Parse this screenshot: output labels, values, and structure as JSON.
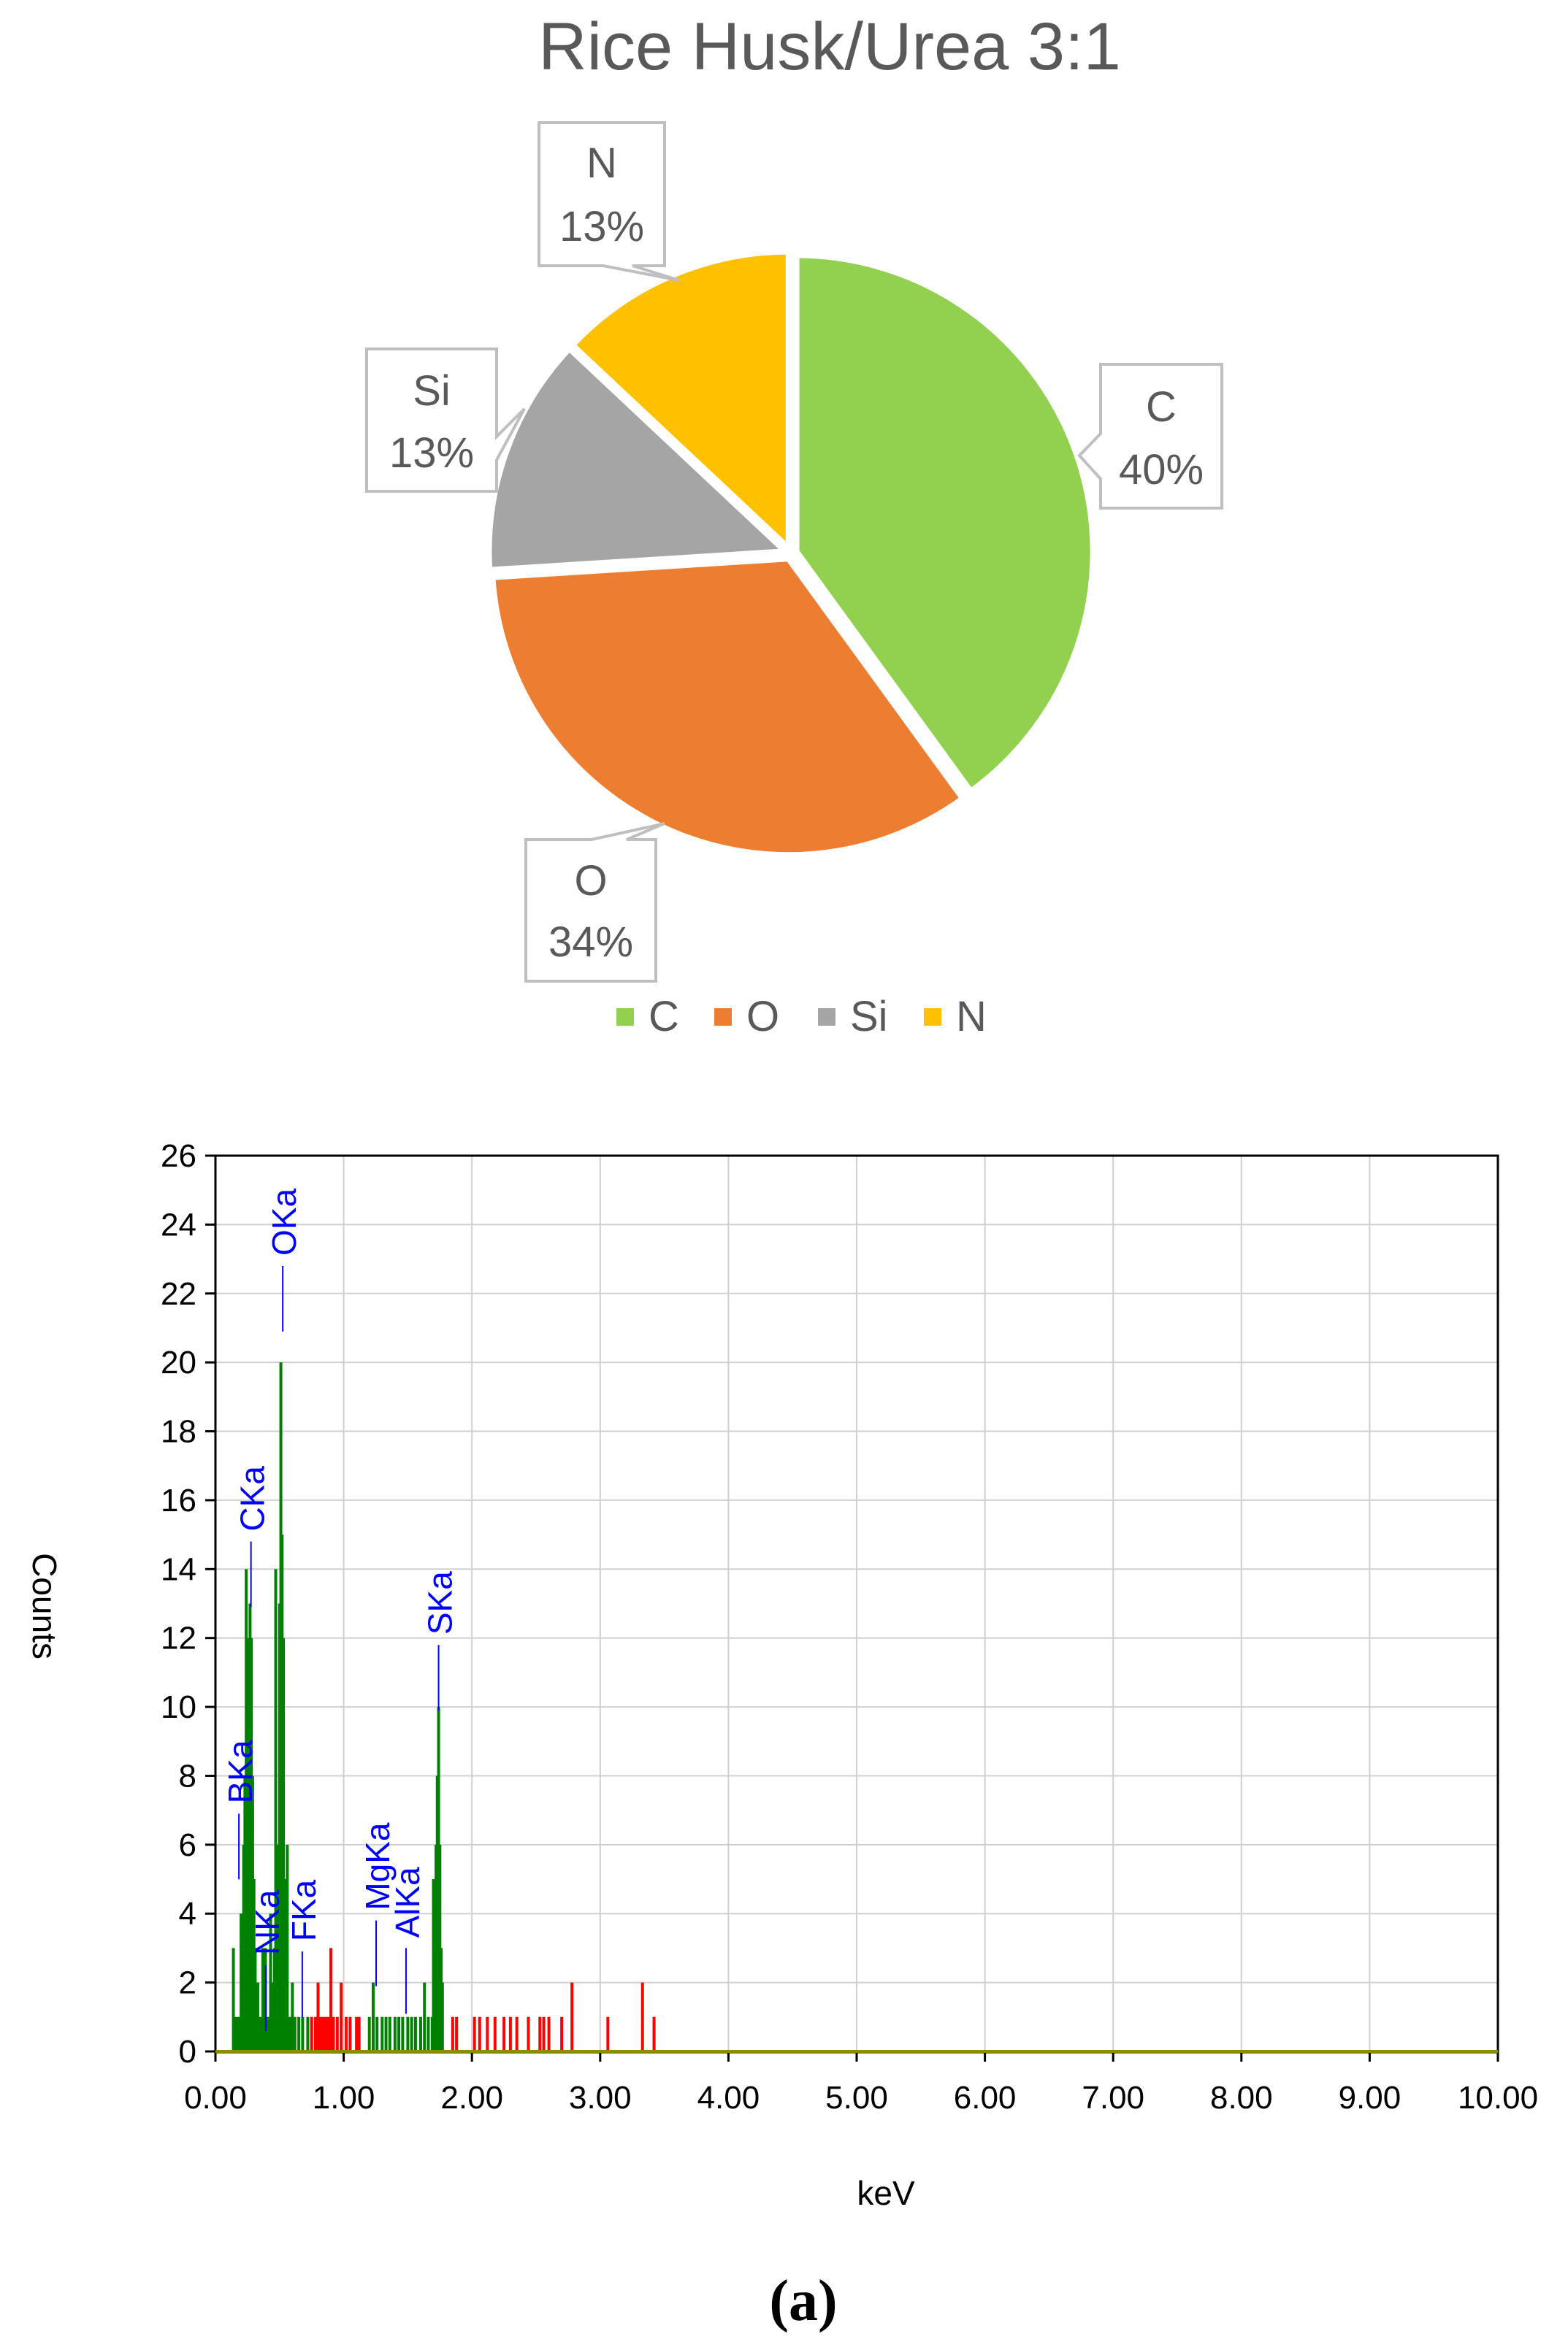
{
  "chart_data": [
    {
      "type": "pie",
      "title": "Rice Husk/Urea 3:1",
      "slices": [
        {
          "label": "C",
          "value": 40,
          "text": "40%",
          "color": "#92D050"
        },
        {
          "label": "O",
          "value": 34,
          "text": "34%",
          "color": "#ED7D31"
        },
        {
          "label": "Si",
          "value": 13,
          "text": "13%",
          "color": "#A5A5A5"
        },
        {
          "label": "N",
          "value": 13,
          "text": "13%",
          "color": "#FFC000"
        }
      ],
      "legend": {
        "placement": "bottom",
        "items": [
          "C",
          "O",
          "Si",
          "N"
        ]
      }
    },
    {
      "type": "bar",
      "title": "",
      "xlabel": "keV",
      "ylabel": "Counts",
      "xlim": [
        0,
        10
      ],
      "ylim": [
        0,
        26
      ],
      "grid": true,
      "x_ticks": [
        "0.00",
        "1.00",
        "2.00",
        "3.00",
        "4.00",
        "5.00",
        "6.00",
        "7.00",
        "8.00",
        "9.00",
        "10.00"
      ],
      "y_ticks": [
        "0",
        "2",
        "4",
        "6",
        "8",
        "10",
        "12",
        "14",
        "16",
        "18",
        "20",
        "22",
        "24",
        "26"
      ],
      "series": [
        {
          "color": "#008000",
          "values": [
            [
              0.14,
              3
            ],
            [
              0.16,
              1
            ],
            [
              0.18,
              1
            ],
            [
              0.2,
              4
            ],
            [
              0.22,
              6
            ],
            [
              0.23,
              8
            ],
            [
              0.24,
              14
            ],
            [
              0.25,
              10
            ],
            [
              0.26,
              12
            ],
            [
              0.27,
              13
            ],
            [
              0.28,
              12
            ],
            [
              0.29,
              8
            ],
            [
              0.3,
              5
            ],
            [
              0.31,
              3
            ],
            [
              0.33,
              2
            ],
            [
              0.35,
              1
            ],
            [
              0.37,
              3
            ],
            [
              0.39,
              3
            ],
            [
              0.41,
              1
            ],
            [
              0.43,
              4
            ],
            [
              0.44,
              2
            ],
            [
              0.46,
              3
            ],
            [
              0.47,
              14
            ],
            [
              0.48,
              6
            ],
            [
              0.49,
              4
            ],
            [
              0.5,
              13
            ],
            [
              0.51,
              20
            ],
            [
              0.52,
              15
            ],
            [
              0.53,
              12
            ],
            [
              0.54,
              5
            ],
            [
              0.55,
              3
            ],
            [
              0.56,
              6
            ],
            [
              0.58,
              1
            ],
            [
              0.6,
              2
            ],
            [
              0.62,
              1
            ],
            [
              0.65,
              1
            ],
            [
              0.68,
              1
            ],
            [
              0.72,
              1
            ],
            [
              1.2,
              1
            ],
            [
              1.23,
              2
            ],
            [
              1.26,
              1
            ],
            [
              1.3,
              1
            ],
            [
              1.33,
              1
            ],
            [
              1.36,
              1
            ],
            [
              1.4,
              1
            ],
            [
              1.43,
              1
            ],
            [
              1.46,
              1
            ],
            [
              1.5,
              1
            ],
            [
              1.53,
              1
            ],
            [
              1.56,
              1
            ],
            [
              1.6,
              1
            ],
            [
              1.63,
              2
            ],
            [
              1.66,
              1
            ],
            [
              1.69,
              1
            ],
            [
              1.7,
              5
            ],
            [
              1.71,
              4
            ],
            [
              1.72,
              6
            ],
            [
              1.73,
              8
            ],
            [
              1.74,
              10
            ],
            [
              1.75,
              6
            ],
            [
              1.76,
              3
            ],
            [
              1.77,
              2
            ]
          ]
        },
        {
          "color": "#FF0000",
          "values": [
            [
              0.75,
              1
            ],
            [
              0.78,
              1
            ],
            [
              0.8,
              2
            ],
            [
              0.82,
              1
            ],
            [
              0.84,
              1
            ],
            [
              0.86,
              1
            ],
            [
              0.88,
              1
            ],
            [
              0.9,
              3
            ],
            [
              0.92,
              1
            ],
            [
              0.95,
              1
            ],
            [
              0.98,
              2
            ],
            [
              1.02,
              1
            ],
            [
              1.05,
              1
            ],
            [
              1.1,
              1
            ],
            [
              1.12,
              1
            ],
            [
              1.85,
              1
            ],
            [
              1.88,
              1
            ],
            [
              2.02,
              1
            ],
            [
              2.06,
              1
            ],
            [
              2.12,
              1
            ],
            [
              2.18,
              1
            ],
            [
              2.25,
              1
            ],
            [
              2.3,
              1
            ],
            [
              2.35,
              1
            ],
            [
              2.44,
              1
            ],
            [
              2.53,
              1
            ],
            [
              2.56,
              1
            ],
            [
              2.6,
              1
            ],
            [
              2.7,
              1
            ],
            [
              2.78,
              2
            ],
            [
              3.06,
              1
            ],
            [
              3.33,
              2
            ],
            [
              3.42,
              1
            ]
          ]
        }
      ],
      "annotations": [
        {
          "text": "OKa",
          "x": 0.525,
          "top": 22.8,
          "color": "#0000FF"
        },
        {
          "text": "CKa",
          "x": 0.277,
          "top": 14.8,
          "color": "#0000FF"
        },
        {
          "text": "SKa",
          "x": 1.74,
          "top": 11.8,
          "color": "#0000FF"
        },
        {
          "text": "BKa",
          "x": 0.183,
          "top": 6.9,
          "color": "#0000FF"
        },
        {
          "text": "AlKa",
          "x": 1.486,
          "top": 3.0,
          "color": "#0000FF"
        },
        {
          "text": "FKa",
          "x": 0.677,
          "top": 2.9,
          "color": "#0000FF"
        },
        {
          "text": "MgKa",
          "x": 1.253,
          "top": 3.8,
          "color": "#0000FF"
        },
        {
          "text": "NKa",
          "x": 0.392,
          "top": 2.5,
          "color": "#0000FF"
        }
      ]
    }
  ],
  "panel_label": "(a)"
}
